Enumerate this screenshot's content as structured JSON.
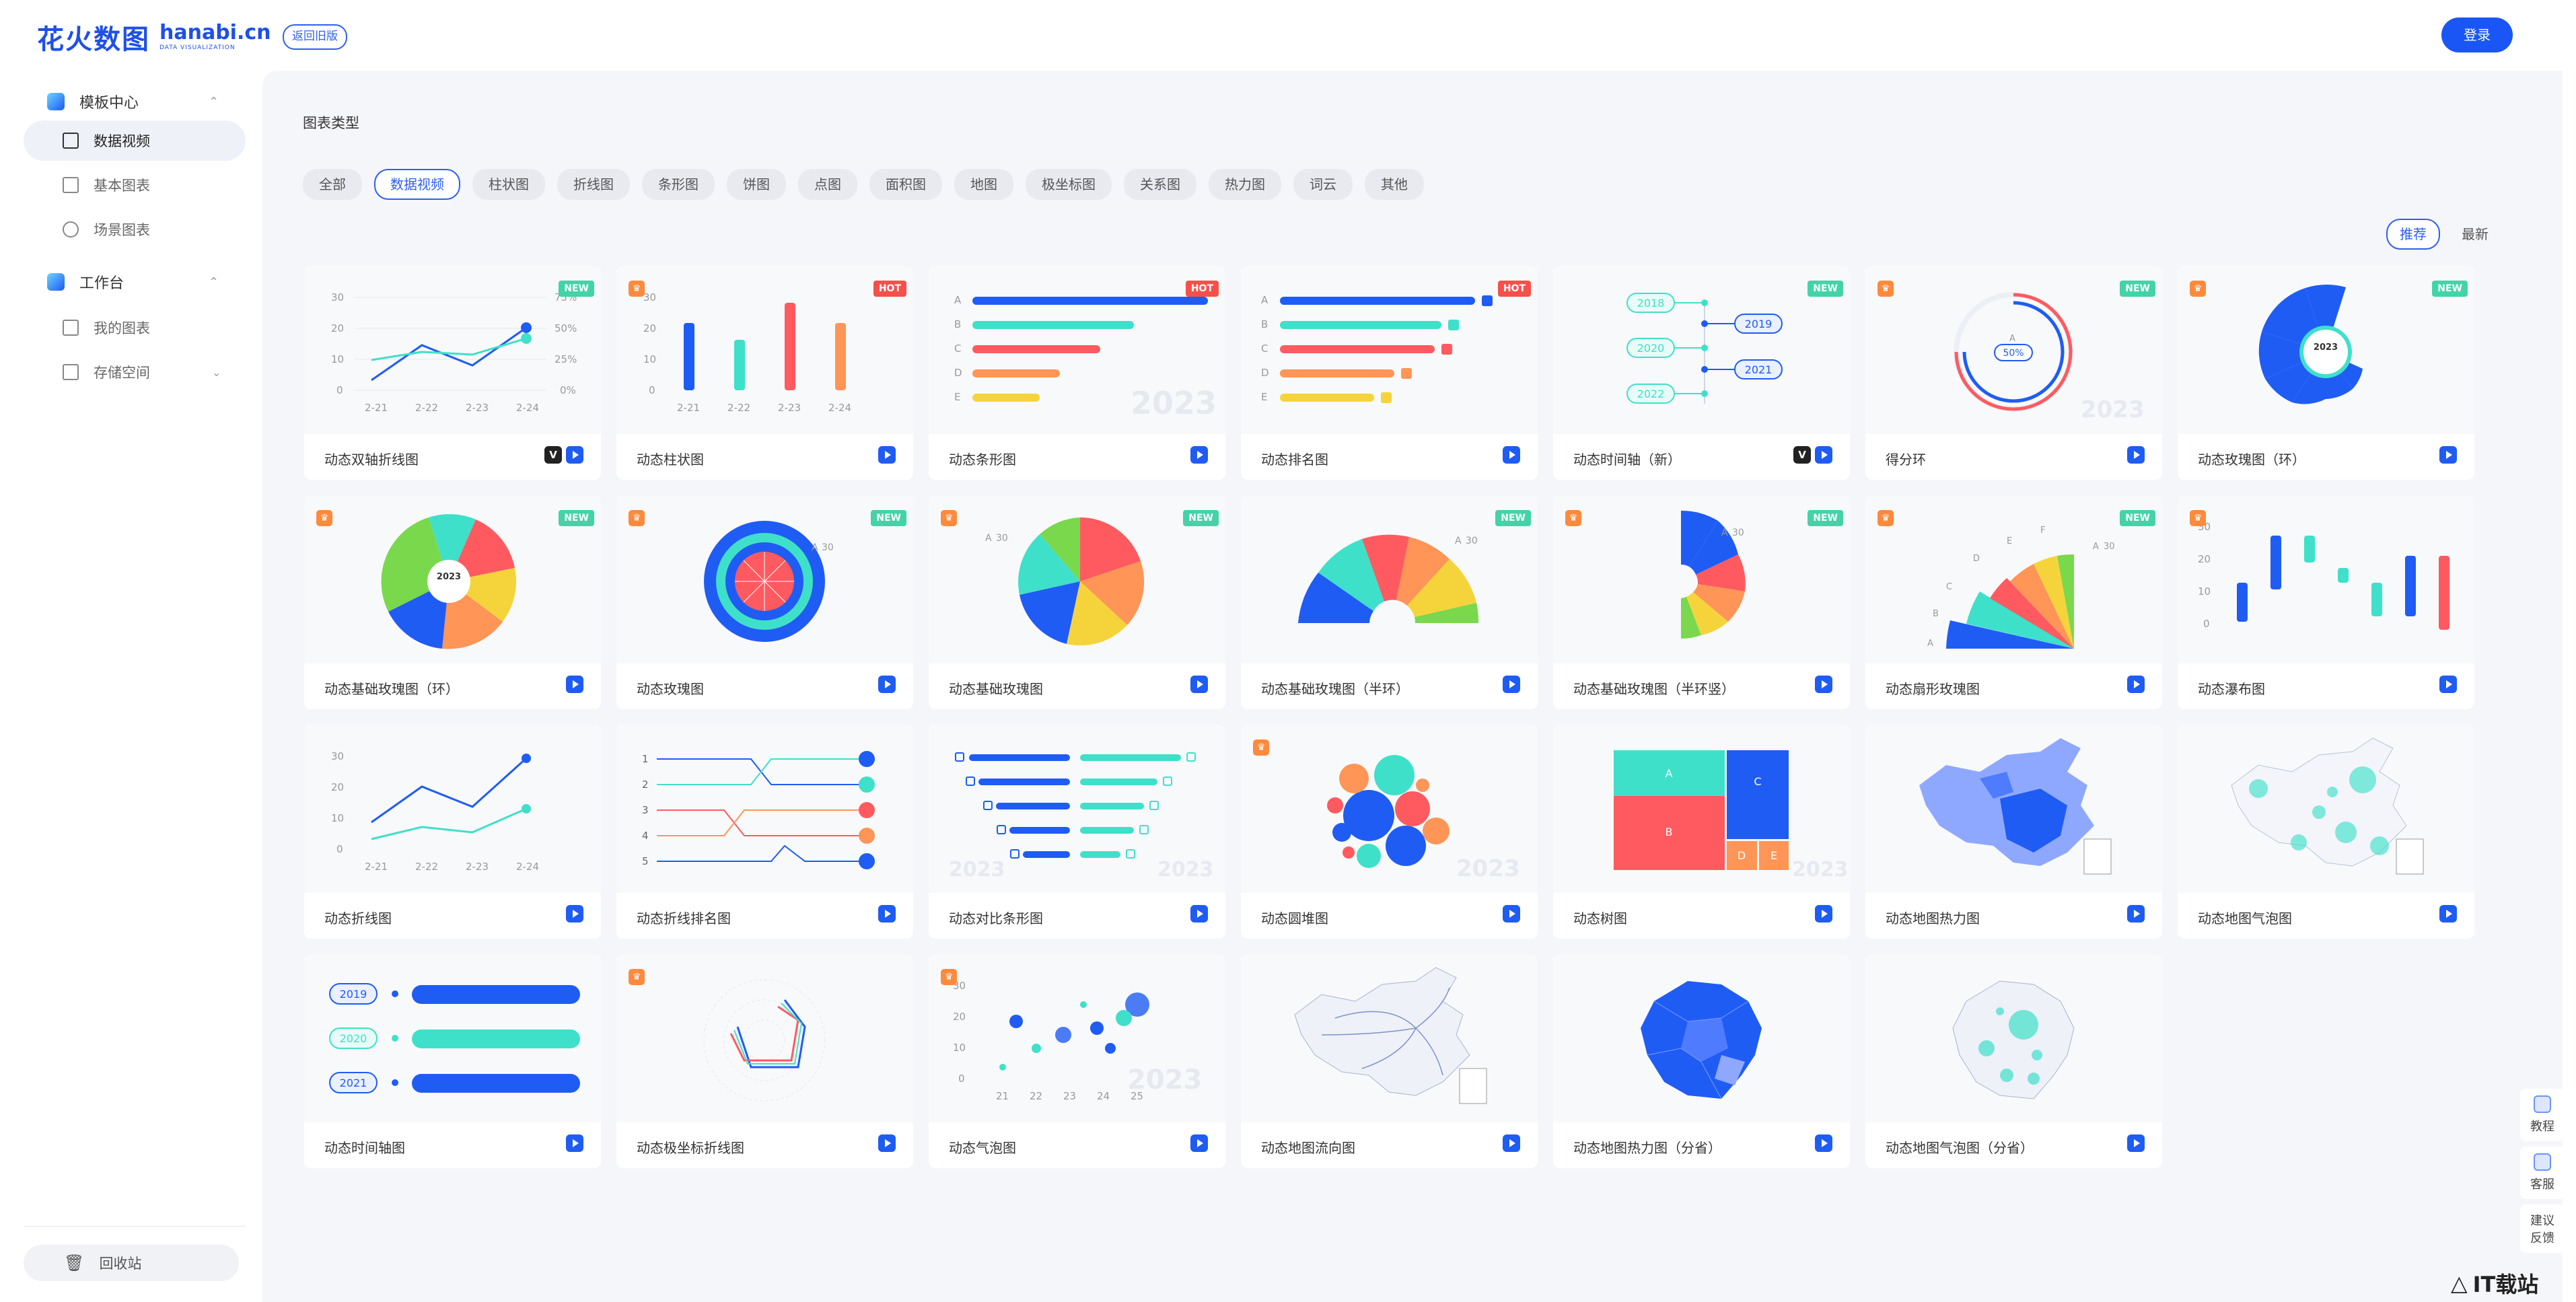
{
  "header": {
    "logo_cn": "花火数图",
    "logo_en": "hanabi.cn",
    "logo_sub": "DATA VISUALIZATION",
    "old_version": "返回旧版",
    "login": "登录"
  },
  "sidebar": {
    "template_center": "模板中心",
    "items": [
      {
        "label": "数据视频"
      },
      {
        "label": "基本图表"
      },
      {
        "label": "场景图表"
      }
    ],
    "workspace": "工作台",
    "ws_items": [
      {
        "label": "我的图表"
      },
      {
        "label": "存储空间"
      }
    ],
    "trash": "回收站"
  },
  "main": {
    "section_title": "图表类型",
    "filters": [
      "全部",
      "数据视频",
      "柱状图",
      "折线图",
      "条形图",
      "饼图",
      "点图",
      "面积图",
      "地图",
      "极坐标图",
      "关系图",
      "热力图",
      "词云",
      "其他"
    ],
    "active_filter": "数据视频",
    "sort": [
      "推荐",
      "最新"
    ],
    "active_sort": "推荐",
    "cards": [
      {
        "name": "动态双轴折线图",
        "tag": "NEW",
        "v": true
      },
      {
        "name": "动态柱状图",
        "tag": "HOT",
        "vip": true
      },
      {
        "name": "动态条形图",
        "tag": "HOT"
      },
      {
        "name": "动态排名图",
        "tag": "HOT"
      },
      {
        "name": "动态时间轴（新）",
        "tag": "NEW",
        "v": true
      },
      {
        "name": "得分环",
        "tag": "NEW",
        "vip": true
      },
      {
        "name": "动态玫瑰图（环）",
        "tag": "NEW",
        "vip": true
      },
      {
        "name": "动态基础玫瑰图（环）",
        "tag": "NEW",
        "vip": true
      },
      {
        "name": "动态玫瑰图",
        "tag": "NEW",
        "vip": true
      },
      {
        "name": "动态基础玫瑰图",
        "tag": "NEW",
        "vip": true
      },
      {
        "name": "动态基础玫瑰图（半环）",
        "tag": "NEW",
        "vip": true
      },
      {
        "name": "动态基础玫瑰图（半环竖）",
        "tag": "NEW",
        "vip": true
      },
      {
        "name": "动态扇形玫瑰图",
        "tag": "NEW",
        "vip": true
      },
      {
        "name": "动态瀑布图",
        "vip": true
      },
      {
        "name": "动态折线图"
      },
      {
        "name": "动态折线排名图"
      },
      {
        "name": "动态对比条形图"
      },
      {
        "name": "动态圆堆图",
        "vip": true
      },
      {
        "name": "动态树图"
      },
      {
        "name": "动态地图热力图"
      },
      {
        "name": "动态地图气泡图"
      },
      {
        "name": "动态时间轴图"
      },
      {
        "name": "动态极坐标折线图",
        "vip": true
      },
      {
        "name": "动态气泡图",
        "vip": true
      },
      {
        "name": "动态地图流向图"
      },
      {
        "name": "动态地图热力图（分省）"
      },
      {
        "name": "动态地图气泡图（分省）"
      }
    ]
  },
  "float": {
    "tutorial": "教程",
    "service": "客服",
    "feedback_1": "建议",
    "feedback_2": "反馈"
  },
  "watermark": "IT载站",
  "thumb_text": {
    "axis_30": "30",
    "axis_20": "20",
    "axis_10": "10",
    "axis_0": "0",
    "pct_75": "75%",
    "pct_50": "50%",
    "pct_25": "25%",
    "pct_0": "0%",
    "d21": "2-21",
    "d22": "2-22",
    "d23": "2-23",
    "d24": "2-24",
    "A": "A",
    "B": "B",
    "C": "C",
    "D": "D",
    "E": "E",
    "F": "F",
    "y2023": "2023",
    "y2018": "2018",
    "y2019": "2019",
    "y2020": "2020",
    "y2021": "2021",
    "y2022": "2022",
    "ring_pct": "50%",
    "n1": "1",
    "n2": "2",
    "n3": "3",
    "n4": "4",
    "n5": "5",
    "b21": "21",
    "b22": "22",
    "b23": "23",
    "b24": "24",
    "b25": "25"
  },
  "colors": {
    "primary": "#1f5cf4",
    "teal": "#3fe0c9",
    "red": "#ff5a5f",
    "orange": "#ff9556",
    "yellow": "#f5d43b",
    "green": "#7ad84c",
    "new": "#43d3a7",
    "hot": "#f5504a"
  }
}
